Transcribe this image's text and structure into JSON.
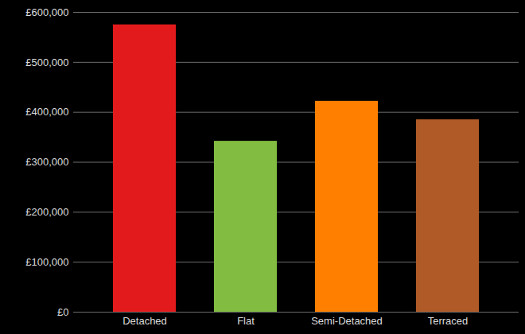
{
  "chart_data": {
    "type": "bar",
    "categories": [
      "Detached",
      "Flat",
      "Semi-Detached",
      "Terraced"
    ],
    "values": [
      575000,
      342000,
      422000,
      385000
    ],
    "colors": [
      "#e31a1c",
      "#82bc41",
      "#ff8000",
      "#b05a28"
    ],
    "ylim": [
      0,
      600000
    ],
    "yticks": [
      {
        "value": 0,
        "label": "£0"
      },
      {
        "value": 100000,
        "label": "£100,000"
      },
      {
        "value": 200000,
        "label": "£200,000"
      },
      {
        "value": 300000,
        "label": "£300,000"
      },
      {
        "value": 400000,
        "label": "£400,000"
      },
      {
        "value": 500000,
        "label": "£500,000"
      },
      {
        "value": 600000,
        "label": "£600,000"
      }
    ],
    "grid": true
  }
}
